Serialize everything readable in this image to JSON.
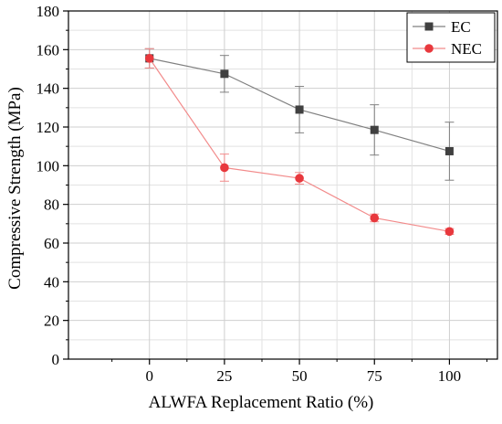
{
  "chart_data": {
    "type": "line",
    "xlabel": "ALWFA Replacement Ratio (%)",
    "ylabel": "Compressive Strength (MPa)",
    "x": [
      0,
      25,
      50,
      75,
      100
    ],
    "xticks": [
      "0",
      "25",
      "50",
      "75",
      "100"
    ],
    "xlim": [
      -27,
      116
    ],
    "ylim": [
      0,
      180
    ],
    "yticks": [
      "0",
      "20",
      "40",
      "60",
      "80",
      "100",
      "120",
      "140",
      "160",
      "180"
    ],
    "grid": true,
    "legend_position": "top-right",
    "series": [
      {
        "name": "EC",
        "values": [
          155.5,
          147.5,
          129,
          118.5,
          107.5
        ],
        "errors": [
          5,
          9.5,
          12,
          13,
          15
        ],
        "color": "#808080",
        "marker_color": "#404040",
        "marker": "square"
      },
      {
        "name": "NEC",
        "values": [
          155.5,
          99,
          93.5,
          73,
          66
        ],
        "errors": [
          5,
          7,
          3,
          2,
          1.5
        ],
        "color": "#f28b8b",
        "marker_color": "#e8383d",
        "marker": "circle"
      }
    ]
  }
}
